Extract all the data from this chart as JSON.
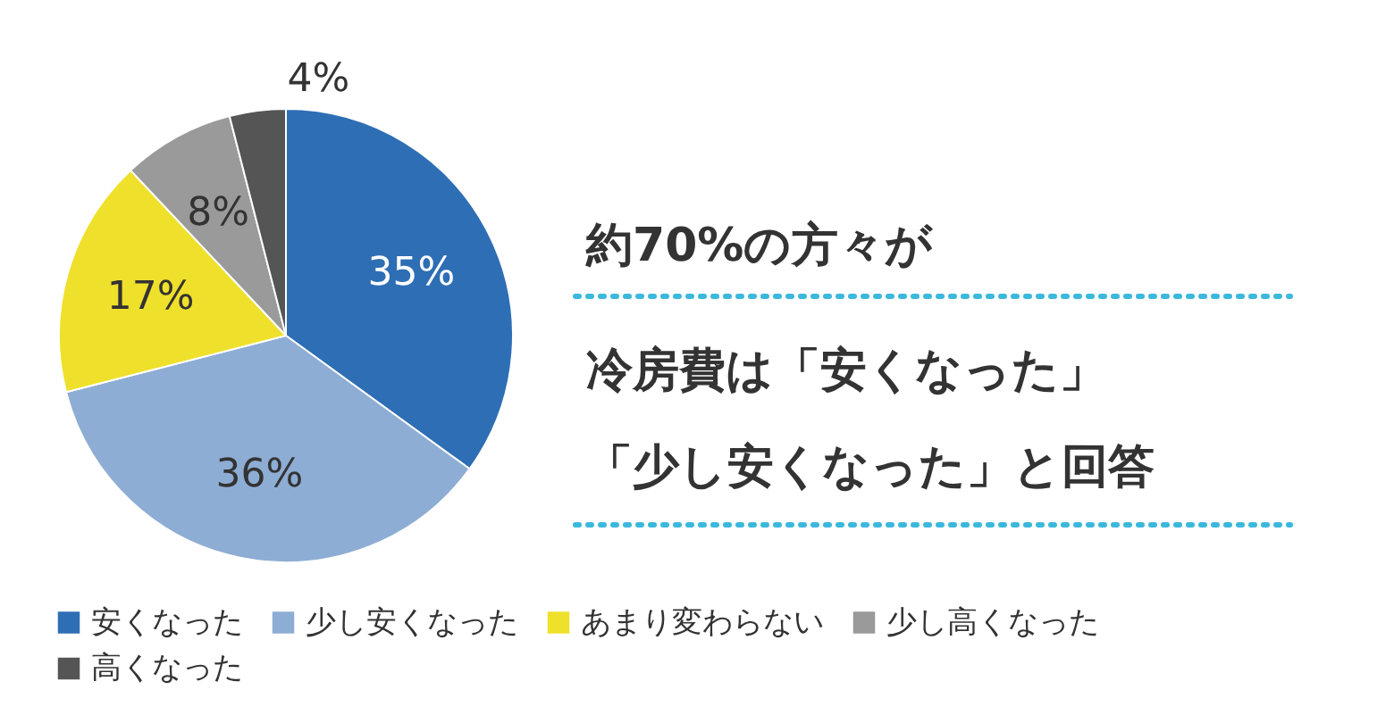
{
  "chart_data": {
    "type": "pie",
    "categories": [
      "安くなった",
      "少し安くなった",
      "あまり変わらない",
      "少し高くなった",
      "高くなった"
    ],
    "values": [
      35,
      36,
      17,
      8,
      4
    ],
    "colors": [
      "#2e6eb5",
      "#8eadd4",
      "#efe02b",
      "#9a9a9a",
      "#555555"
    ],
    "value_labels": [
      "35%",
      "36%",
      "17%",
      "8%",
      "4%"
    ],
    "annotations": [
      "約70%の方々が",
      "冷房費は「安くなった」",
      "「少し安くなった」と回答"
    ],
    "legend": "bottom"
  }
}
